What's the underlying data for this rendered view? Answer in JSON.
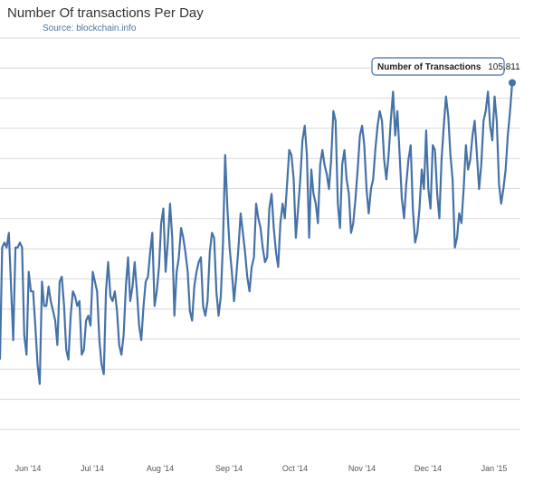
{
  "chart_data": {
    "type": "line",
    "title": "Number Of transactions Per Day",
    "subtitle": "Source: blockchain.info",
    "xlabel": "",
    "ylabel": "",
    "x_tick_labels": [
      "Jun '14",
      "Jul '14",
      "Aug '14",
      "Sep '14",
      "Oct '14",
      "Nov '14",
      "Dec '14",
      "Jan '15"
    ],
    "grid": true,
    "ylim": [
      30000,
      115000
    ],
    "series": [
      {
        "color": "#4572a7",
        "values": [
          49000,
          72000,
          73000,
          72000,
          75000,
          64000,
          53000,
          72000,
          72000,
          73000,
          72000,
          54000,
          50000,
          67000,
          63000,
          63000,
          56000,
          48000,
          44000,
          65000,
          60000,
          60000,
          64000,
          61000,
          59000,
          57000,
          52000,
          65000,
          66000,
          60000,
          51000,
          49000,
          58000,
          63000,
          62000,
          60000,
          61000,
          50000,
          51000,
          57000,
          58000,
          56000,
          67000,
          65000,
          63000,
          53000,
          48000,
          46000,
          63000,
          69000,
          62000,
          61000,
          63000,
          59000,
          52000,
          50000,
          54000,
          64000,
          70000,
          61000,
          64000,
          69000,
          63000,
          56000,
          53000,
          60000,
          65000,
          66000,
          71000,
          75000,
          60000,
          63000,
          68000,
          77000,
          80000,
          67000,
          73000,
          81000,
          74000,
          58000,
          67000,
          70000,
          76000,
          74000,
          71000,
          67000,
          59000,
          57000,
          64000,
          67000,
          69000,
          70000,
          60000,
          58000,
          61000,
          71000,
          75000,
          74000,
          63000,
          58000,
          62000,
          73000,
          91000,
          80000,
          72000,
          67000,
          61000,
          66000,
          72000,
          79000,
          75000,
          71000,
          66000,
          63000,
          68000,
          70000,
          81000,
          78000,
          76000,
          72000,
          69000,
          70000,
          80000,
          83000,
          76000,
          71000,
          68000,
          77000,
          81000,
          78000,
          85000,
          92000,
          91000,
          86000,
          74000,
          80000,
          86000,
          94000,
          97000,
          91000,
          74000,
          88000,
          83000,
          81000,
          77000,
          89000,
          92000,
          89000,
          87000,
          84000,
          90000,
          100000,
          98000,
          81000,
          76000,
          89000,
          92000,
          86000,
          83000,
          75000,
          77000,
          82000,
          88000,
          95000,
          97000,
          93000,
          84000,
          79000,
          84000,
          86000,
          92000,
          97000,
          100000,
          98000,
          90000,
          86000,
          91000,
          98000,
          104000,
          95000,
          100000,
          91000,
          82000,
          78000,
          85000,
          90000,
          93000,
          80000,
          73000,
          75000,
          80000,
          88000,
          84000,
          96000,
          84000,
          80000,
          93000,
          92000,
          83000,
          78000,
          90000,
          97000,
          103000,
          99000,
          91000,
          86000,
          72000,
          74000,
          79000,
          77000,
          84000,
          93000,
          88000,
          90000,
          95000,
          98000,
          91000,
          84000,
          89000,
          98000,
          100000,
          104000,
          97000,
          94000,
          103000,
          98000,
          85000,
          81000,
          84000,
          88000,
          95000,
          100000,
          105811
        ]
      }
    ],
    "tooltip": {
      "label": "Number of Transactions",
      "value": "105,811"
    }
  }
}
